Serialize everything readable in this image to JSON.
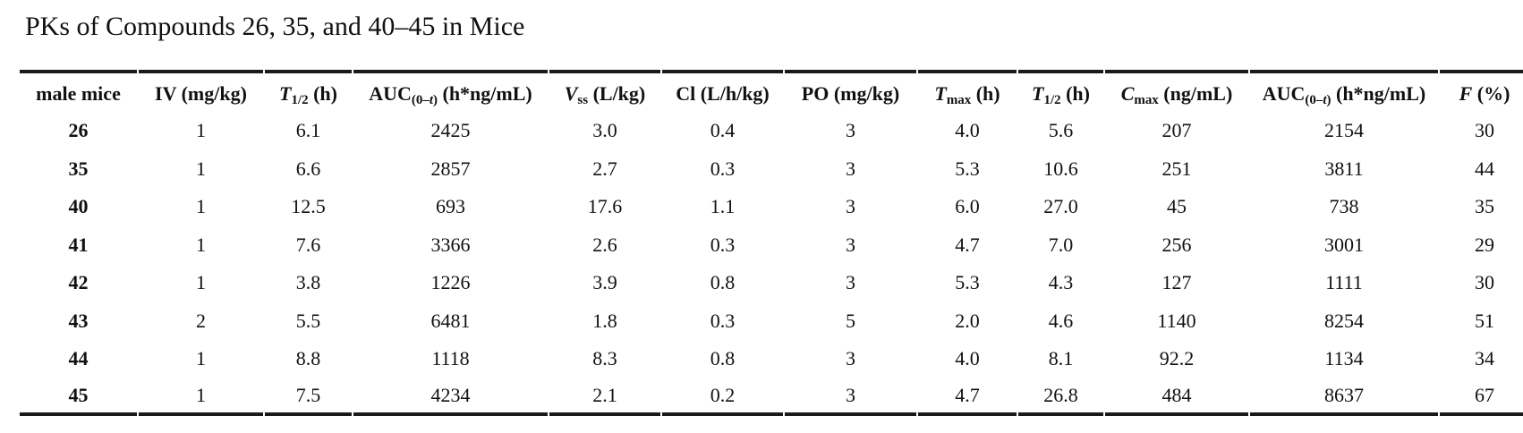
{
  "title": "PKs of Compounds 26, 35, and 40–45 in Mice",
  "colors": {
    "text": "#111111",
    "rule": "#1a1a1a",
    "background": "#ffffff"
  },
  "table": {
    "columns": [
      {
        "name": "male-mice",
        "segments": [
          {
            "t": "male mice"
          }
        ]
      },
      {
        "name": "iv-dose",
        "segments": [
          {
            "t": "IV (mg/kg)"
          }
        ]
      },
      {
        "name": "iv-t-half",
        "segments": [
          {
            "t": "T",
            "i": true
          },
          {
            "t": "1/2",
            "sub": true
          },
          {
            "t": " (h)"
          }
        ]
      },
      {
        "name": "iv-auc",
        "segments": [
          {
            "t": "AUC"
          },
          {
            "t": "(0–",
            "sub": true
          },
          {
            "t": "t",
            "sub": true,
            "i": true
          },
          {
            "t": ")",
            "sub": true
          },
          {
            "t": " (h*ng/mL)"
          }
        ]
      },
      {
        "name": "vss",
        "segments": [
          {
            "t": "V",
            "i": true
          },
          {
            "t": "ss",
            "sub": true
          },
          {
            "t": " (L/kg)"
          }
        ]
      },
      {
        "name": "cl",
        "segments": [
          {
            "t": "Cl (L/h/kg)"
          }
        ]
      },
      {
        "name": "po-dose",
        "segments": [
          {
            "t": "PO (mg/kg)"
          }
        ]
      },
      {
        "name": "tmax",
        "segments": [
          {
            "t": "T",
            "i": true
          },
          {
            "t": "max",
            "sub": true
          },
          {
            "t": " (h)"
          }
        ]
      },
      {
        "name": "po-t-half",
        "segments": [
          {
            "t": "T",
            "i": true
          },
          {
            "t": "1/2",
            "sub": true
          },
          {
            "t": " (h)"
          }
        ]
      },
      {
        "name": "cmax",
        "segments": [
          {
            "t": "C",
            "i": true
          },
          {
            "t": "max",
            "sub": true
          },
          {
            "t": " (ng/mL)"
          }
        ]
      },
      {
        "name": "po-auc",
        "segments": [
          {
            "t": "AUC"
          },
          {
            "t": "(0–",
            "sub": true
          },
          {
            "t": "t",
            "sub": true,
            "i": true
          },
          {
            "t": ")",
            "sub": true
          },
          {
            "t": " (h*ng/mL)"
          }
        ]
      },
      {
        "name": "f-percent",
        "segments": [
          {
            "t": "F",
            "i": true
          },
          {
            "t": " (%)"
          }
        ]
      }
    ],
    "rows": [
      {
        "compound": "26",
        "values": [
          "1",
          "6.1",
          "2425",
          "3.0",
          "0.4",
          "3",
          "4.0",
          "5.6",
          "207",
          "2154",
          "30"
        ]
      },
      {
        "compound": "35",
        "values": [
          "1",
          "6.6",
          "2857",
          "2.7",
          "0.3",
          "3",
          "5.3",
          "10.6",
          "251",
          "3811",
          "44"
        ]
      },
      {
        "compound": "40",
        "values": [
          "1",
          "12.5",
          "693",
          "17.6",
          "1.1",
          "3",
          "6.0",
          "27.0",
          "45",
          "738",
          "35"
        ]
      },
      {
        "compound": "41",
        "values": [
          "1",
          "7.6",
          "3366",
          "2.6",
          "0.3",
          "3",
          "4.7",
          "7.0",
          "256",
          "3001",
          "29"
        ]
      },
      {
        "compound": "42",
        "values": [
          "1",
          "3.8",
          "1226",
          "3.9",
          "0.8",
          "3",
          "5.3",
          "4.3",
          "127",
          "1111",
          "30"
        ]
      },
      {
        "compound": "43",
        "values": [
          "2",
          "5.5",
          "6481",
          "1.8",
          "0.3",
          "5",
          "2.0",
          "4.6",
          "1140",
          "8254",
          "51"
        ]
      },
      {
        "compound": "44",
        "values": [
          "1",
          "8.8",
          "1118",
          "8.3",
          "0.8",
          "3",
          "4.0",
          "8.1",
          "92.2",
          "1134",
          "34"
        ]
      },
      {
        "compound": "45",
        "values": [
          "1",
          "7.5",
          "4234",
          "2.1",
          "0.2",
          "3",
          "4.7",
          "26.8",
          "484",
          "8637",
          "67"
        ]
      }
    ]
  }
}
